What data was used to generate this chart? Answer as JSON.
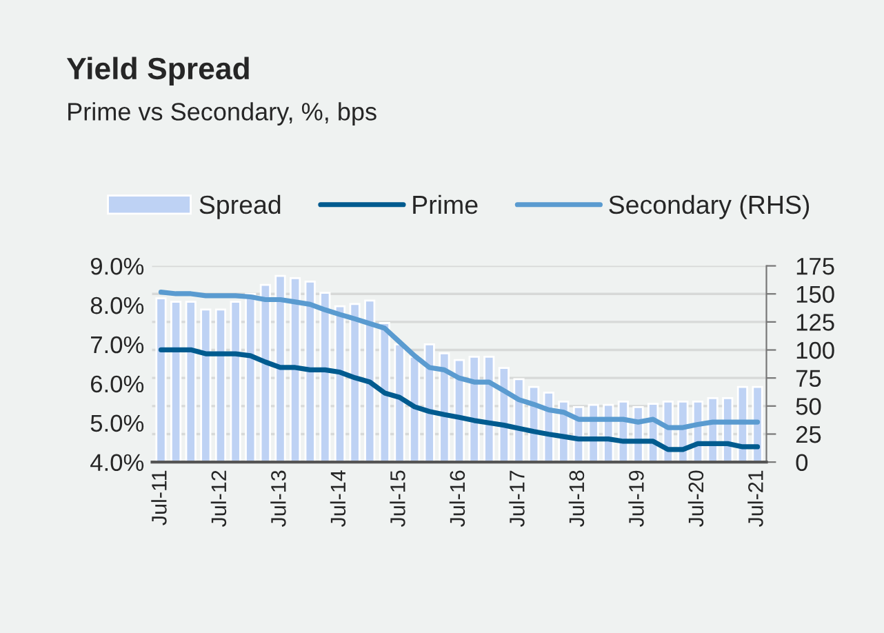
{
  "chart_data": {
    "type": "bar",
    "title": "Yield Spread",
    "subtitle": "Prime vs Secondary, %, bps",
    "categories": [
      "Jul-11",
      null,
      null,
      null,
      "Jul-12",
      null,
      null,
      null,
      "Jul-13",
      null,
      null,
      null,
      "Jul-14",
      null,
      null,
      null,
      "Jul-15",
      null,
      null,
      null,
      "Jul-16",
      null,
      null,
      null,
      "Jul-17",
      null,
      null,
      null,
      "Jul-18",
      null,
      null,
      null,
      "Jul-19",
      null,
      null,
      null,
      "Jul-20",
      null,
      null,
      null,
      "Jul-21"
    ],
    "series": [
      {
        "name": "Spread",
        "axis": "y2",
        "color": "#bed2f4",
        "values": [
          146,
          143,
          143,
          136,
          136,
          143,
          150,
          158,
          166,
          164,
          161,
          151,
          139,
          141,
          144,
          124,
          105,
          94,
          105,
          97,
          91,
          94,
          94,
          84,
          74,
          67,
          62,
          54,
          49,
          51,
          51,
          54,
          49,
          52,
          54,
          54,
          54,
          57,
          57,
          67,
          67
        ]
      },
      {
        "name": "Prime",
        "type": "line",
        "color": "#005b8f",
        "values": [
          6.86,
          6.86,
          6.86,
          6.76,
          6.76,
          6.76,
          6.71,
          6.55,
          6.41,
          6.41,
          6.35,
          6.35,
          6.29,
          6.15,
          6.04,
          5.76,
          5.65,
          5.41,
          5.29,
          5.21,
          5.14,
          5.06,
          5.0,
          4.94,
          4.86,
          4.78,
          4.71,
          4.65,
          4.59,
          4.59,
          4.59,
          4.53,
          4.53,
          4.53,
          4.32,
          4.32,
          4.47,
          4.47,
          4.47,
          4.39,
          4.39
        ]
      },
      {
        "name": "Secondary (RHS)",
        "type": "line",
        "color": "#5a9bd0",
        "values": [
          8.33,
          8.29,
          8.29,
          8.24,
          8.24,
          8.24,
          8.21,
          8.14,
          8.14,
          8.08,
          8.02,
          7.88,
          7.76,
          7.65,
          7.53,
          7.41,
          7.06,
          6.71,
          6.41,
          6.35,
          6.14,
          6.04,
          6.04,
          5.82,
          5.59,
          5.47,
          5.33,
          5.27,
          5.09,
          5.09,
          5.09,
          5.09,
          5.02,
          5.09,
          4.88,
          4.88,
          4.96,
          5.02,
          5.02,
          5.02,
          5.02
        ]
      }
    ],
    "ylim": [
      4,
      9
    ],
    "yticks": [
      {
        "value": 4,
        "label": "4.0%"
      },
      {
        "value": 5,
        "label": "5.0%"
      },
      {
        "value": 6,
        "label": "6.0%"
      },
      {
        "value": 7,
        "label": "7.0%"
      },
      {
        "value": 8,
        "label": "8.0%"
      },
      {
        "value": 9,
        "label": "9.0%"
      }
    ],
    "y2lim": [
      0,
      175
    ],
    "y2ticks": [
      0,
      25,
      50,
      75,
      100,
      125,
      150,
      175
    ],
    "grid": "y",
    "legend": "top",
    "line_style": "solid",
    "marker": "none"
  }
}
